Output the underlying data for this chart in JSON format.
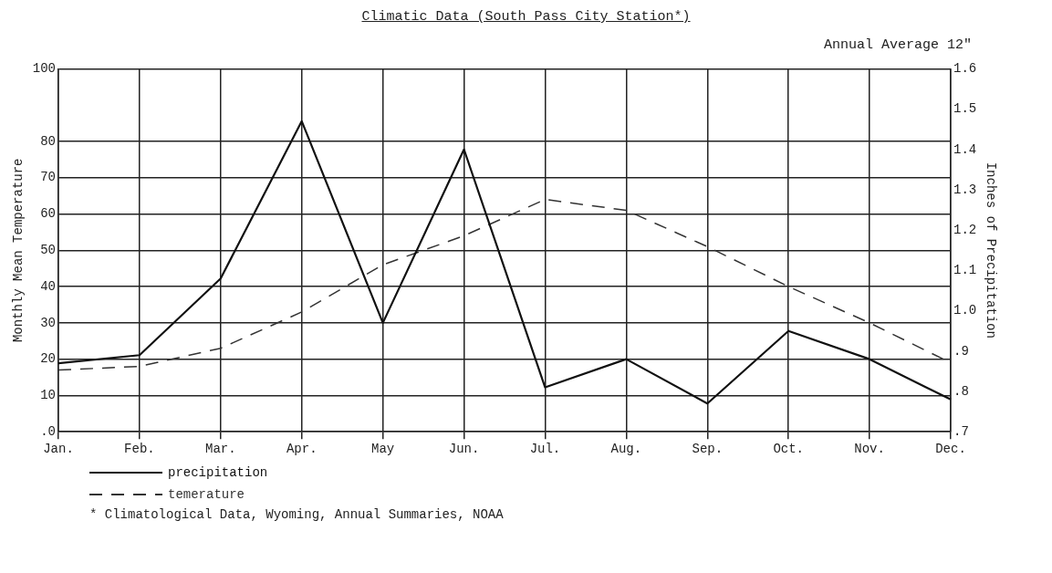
{
  "chart_data": {
    "type": "line",
    "title": "Climatic Data (South Pass City Station*)",
    "annotations": [
      "Annual Average 12\"",
      "* Climatological Data, Wyoming, Annual Summaries, NOAA"
    ],
    "ylabel": "Monthly Mean Temperature",
    "y2label": "Inches of Precipitation",
    "categories": [
      "Jan.",
      "Feb.",
      "Mar.",
      "Apr.",
      "May",
      "Jun.",
      "Jul.",
      "Aug.",
      "Sep.",
      "Oct.",
      "Nov.",
      "Dec."
    ],
    "series": [
      {
        "name": "precipitation",
        "color": "#111111",
        "axis": "y2",
        "line_style": "solid",
        "values": [
          0.87,
          0.89,
          1.08,
          1.47,
          0.97,
          1.4,
          0.81,
          0.88,
          0.77,
          0.95,
          0.88,
          0.78
        ]
      },
      {
        "name": "temerature",
        "color": "#333333",
        "axis": "y",
        "line_style": "dashed",
        "values": [
          17,
          18,
          23,
          33,
          46,
          54,
          64,
          61,
          51,
          40,
          30,
          19
        ]
      }
    ],
    "ylim": [
      0,
      100
    ],
    "yticks": [
      {
        "value": 0,
        "label": ".0"
      },
      10,
      20,
      30,
      40,
      50,
      60,
      70,
      80,
      100
    ],
    "y2lim": [
      0.7,
      1.6
    ],
    "y2ticks": [
      {
        "value": 0.7,
        "label": ".7"
      },
      {
        "value": 0.8,
        "label": ".8"
      },
      {
        "value": 0.9,
        "label": ".9"
      },
      {
        "value": 1.0,
        "label": "1.0"
      },
      1.1,
      1.2,
      1.3,
      1.4,
      1.5,
      1.6
    ],
    "grid": true,
    "legend": "bottom left",
    "marker": "none"
  }
}
